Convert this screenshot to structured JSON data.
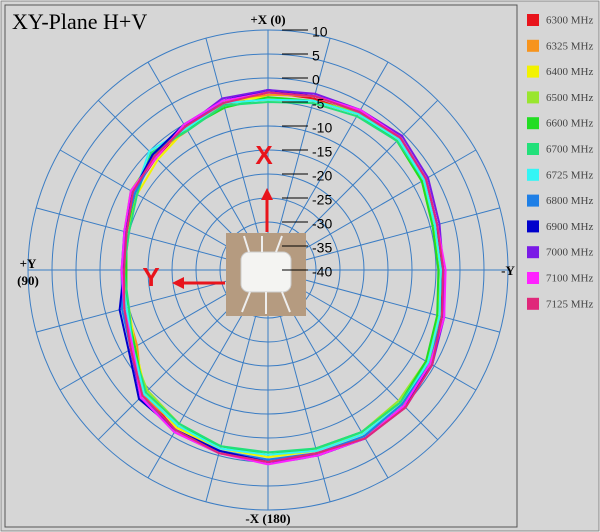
{
  "chart_data": {
    "type": "polar",
    "title": "XY-Plane  H+V",
    "angle_labels": {
      "top": "+X (0)",
      "left": [
        "+Y",
        "(90)"
      ],
      "right": "-Y",
      "bottom": "-X (180)"
    },
    "annotations": [
      "X",
      "Y"
    ],
    "x": [
      0,
      15,
      30,
      45,
      60,
      75,
      90,
      105,
      120,
      135,
      150,
      165,
      180,
      195,
      210,
      225,
      240,
      255,
      270,
      285,
      300,
      315,
      330,
      345
    ],
    "rlim": [
      -40,
      10
    ],
    "rticks": [
      10,
      5,
      0,
      -5,
      -10,
      -15,
      -20,
      -25,
      -30,
      -35,
      -40
    ],
    "grid": true,
    "legend": "right",
    "series": [
      {
        "name": "6300 MHz",
        "color": "#e8141c",
        "values": [
          -3,
          -4.5,
          -5.5,
          -7,
          -7.5,
          -9,
          -10.5,
          -9,
          -7.5,
          -3.5,
          -1.5,
          -1,
          0,
          -0.5,
          0.5,
          0,
          -1.5,
          -2.5,
          -4,
          -3.5,
          -2,
          -1,
          -2.5,
          -3
        ]
      },
      {
        "name": "6325 MHz",
        "color": "#f7941d",
        "values": [
          -3.5,
          -4,
          -6.5,
          -6,
          -8,
          -10,
          -10,
          -9.5,
          -8.5,
          -3,
          -2.5,
          -0.5,
          -0.5,
          0,
          0,
          0.5,
          -1,
          -3,
          -4.5,
          -4,
          -2.5,
          -1.5,
          -2,
          -2.5
        ]
      },
      {
        "name": "6400 MHz",
        "color": "#f2f200",
        "values": [
          -4,
          -3.5,
          -6,
          -7.5,
          -8.5,
          -9.5,
          -9.5,
          -10,
          -8,
          -4,
          -2,
          -1.5,
          -1,
          -1,
          -0.5,
          -0.5,
          -1,
          -3.5,
          -4,
          -4.5,
          -3,
          -2,
          -2.5,
          -3.5
        ]
      },
      {
        "name": "6500 MHz",
        "color": "#99e62e",
        "values": [
          -4.5,
          -4,
          -5,
          -6.5,
          -7,
          -9,
          -10,
          -9,
          -7,
          -4.5,
          -3,
          -2,
          -1.5,
          -1,
          -1,
          -1.5,
          -2,
          -3,
          -4,
          -4,
          -3,
          -2,
          -2,
          -3.5
        ]
      },
      {
        "name": "6600 MHz",
        "color": "#22dd22",
        "values": [
          -4,
          -5,
          -6,
          -6,
          -8,
          -9.5,
          -10.5,
          -9.5,
          -8,
          -3.5,
          -2.5,
          -2,
          -1.5,
          -1.5,
          -1,
          -1,
          -2,
          -3.5,
          -4.5,
          -4.5,
          -3,
          -2,
          -2.5,
          -3.5
        ]
      },
      {
        "name": "6700 MHz",
        "color": "#22e07a",
        "values": [
          -5,
          -4.5,
          -6.5,
          -5.5,
          -8.5,
          -10,
          -10,
          -10,
          -7.5,
          -4,
          -3,
          -2,
          -2,
          -1.5,
          -1,
          -1,
          -1.5,
          -3,
          -4,
          -4,
          -2.5,
          -2,
          -3,
          -4
        ]
      },
      {
        "name": "6725 MHz",
        "color": "#33f5f5",
        "values": [
          -4.5,
          -4,
          -6,
          -5,
          -8,
          -9,
          -9.5,
          -9.5,
          -7.5,
          -3.5,
          -2.5,
          -1.5,
          -1.5,
          -1,
          -0.5,
          -0.5,
          -1.5,
          -3,
          -4,
          -4,
          -2.5,
          -1.5,
          -2.5,
          -3.5
        ]
      },
      {
        "name": "6800 MHz",
        "color": "#1e7fe6",
        "values": [
          -3,
          -3.5,
          -5.5,
          -6.5,
          -8,
          -9,
          -9.5,
          -8.5,
          -7,
          -2.5,
          -1.5,
          -1,
          -0.5,
          -0.5,
          0,
          -0.5,
          -1,
          -2.5,
          -3.5,
          -3.5,
          -2,
          -1,
          -2,
          -2.5
        ]
      },
      {
        "name": "6900 MHz",
        "color": "#0000cc",
        "values": [
          -2.5,
          -3.5,
          -5,
          -6,
          -7.5,
          -9,
          -10,
          -8,
          -6.5,
          -2,
          -1.5,
          -1,
          0,
          0,
          0.5,
          0,
          -0.5,
          -2.5,
          -3.5,
          -3.5,
          -2,
          -1,
          -1.5,
          -2.5
        ]
      },
      {
        "name": "7000 MHz",
        "color": "#7a1ae6",
        "values": [
          -2.5,
          -3,
          -5.5,
          -6.5,
          -7.5,
          -9.5,
          -9.5,
          -9,
          -7,
          -2.5,
          -1,
          -0.5,
          0,
          0,
          0.5,
          0.5,
          -0.5,
          -2,
          -3.5,
          -3,
          -1.5,
          -0.5,
          -1.5,
          -2
        ]
      },
      {
        "name": "7100 MHz",
        "color": "#ff22ff",
        "values": [
          -3,
          -3.5,
          -5,
          -7,
          -7,
          -9,
          -9.5,
          -9,
          -7.5,
          -2.5,
          -1,
          -0.5,
          0.5,
          0,
          0.5,
          0,
          -1,
          -2,
          -3,
          -3.5,
          -2,
          -1,
          -1.5,
          -2.5
        ]
      },
      {
        "name": "7125 MHz",
        "color": "#e0287a",
        "values": [
          -3,
          -4,
          -5.5,
          -6.5,
          -7.5,
          -9.5,
          -10,
          -9,
          -7,
          -3,
          -1.5,
          -0.5,
          0,
          -0.5,
          0.5,
          0.5,
          -0.5,
          -2.5,
          -3.5,
          -3.5,
          -2,
          -1,
          -2,
          -2.5
        ]
      }
    ]
  }
}
